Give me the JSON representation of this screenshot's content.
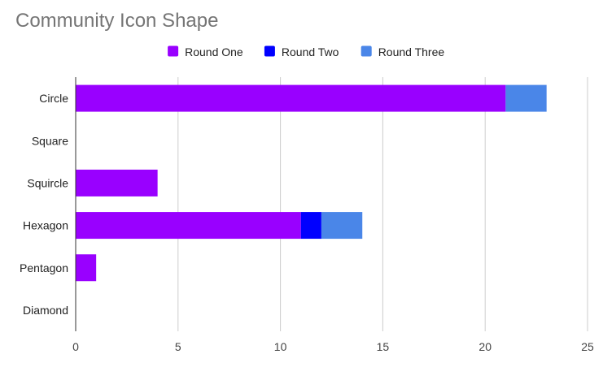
{
  "chart_data": {
    "type": "bar",
    "orientation": "horizontal",
    "stacked": true,
    "title": "Community Icon Shape",
    "xlabel": "",
    "ylabel": "",
    "xlim": [
      0,
      25
    ],
    "x_ticks": [
      "0",
      "5",
      "10",
      "15",
      "20",
      "25"
    ],
    "grid": true,
    "legend_position": "top",
    "categories": [
      "Circle",
      "Square",
      "Squircle",
      "Hexagon",
      "Pentagon",
      "Diamond"
    ],
    "series": [
      {
        "name": "Round One",
        "color": "#9900ff",
        "values": [
          21,
          0,
          4,
          11,
          1,
          0
        ]
      },
      {
        "name": "Round Two",
        "color": "#0000ff",
        "values": [
          0,
          0,
          0,
          1,
          0,
          0
        ]
      },
      {
        "name": "Round Three",
        "color": "#4a86e8",
        "values": [
          2,
          0,
          0,
          2,
          0,
          0
        ]
      }
    ]
  }
}
